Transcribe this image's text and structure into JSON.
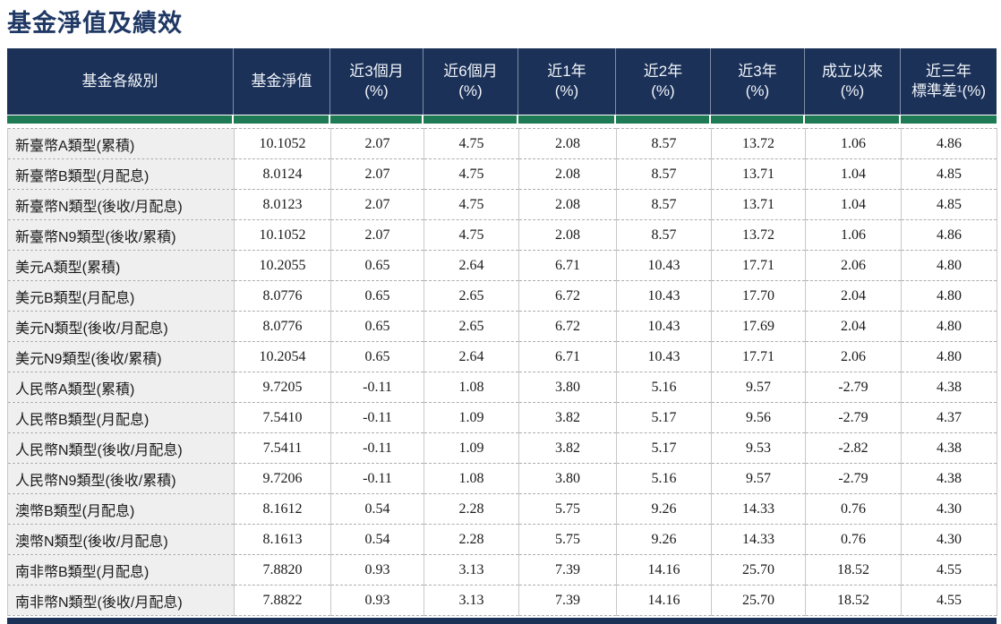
{
  "page_title": "基金淨值及績效",
  "table": {
    "columns": [
      {
        "line1": "基金各級別",
        "line2": ""
      },
      {
        "line1": "基金淨值",
        "line2": ""
      },
      {
        "line1": "近3個月",
        "line2": "(%)"
      },
      {
        "line1": "近6個月",
        "line2": "(%)"
      },
      {
        "line1": "近1年",
        "line2": "(%)"
      },
      {
        "line1": "近2年",
        "line2": "(%)"
      },
      {
        "line1": "近3年",
        "line2": "(%)"
      },
      {
        "line1": "成立以來",
        "line2": "(%)"
      },
      {
        "line1": "近三年",
        "line2": "標準差¹(%)"
      }
    ],
    "rows": [
      {
        "label": "新臺幣A類型(累積)",
        "values": [
          "10.1052",
          "2.07",
          "4.75",
          "2.08",
          "8.57",
          "13.72",
          "1.06",
          "4.86"
        ]
      },
      {
        "label": "新臺幣B類型(月配息)",
        "values": [
          "8.0124",
          "2.07",
          "4.75",
          "2.08",
          "8.57",
          "13.71",
          "1.04",
          "4.85"
        ]
      },
      {
        "label": "新臺幣N類型(後收/月配息)",
        "values": [
          "8.0123",
          "2.07",
          "4.75",
          "2.08",
          "8.57",
          "13.71",
          "1.04",
          "4.85"
        ]
      },
      {
        "label": "新臺幣N9類型(後收/累積)",
        "values": [
          "10.1052",
          "2.07",
          "4.75",
          "2.08",
          "8.57",
          "13.72",
          "1.06",
          "4.86"
        ]
      },
      {
        "label": "美元A類型(累積)",
        "values": [
          "10.2055",
          "0.65",
          "2.64",
          "6.71",
          "10.43",
          "17.71",
          "2.06",
          "4.80"
        ]
      },
      {
        "label": "美元B類型(月配息)",
        "values": [
          "8.0776",
          "0.65",
          "2.65",
          "6.72",
          "10.43",
          "17.70",
          "2.04",
          "4.80"
        ]
      },
      {
        "label": "美元N類型(後收/月配息)",
        "values": [
          "8.0776",
          "0.65",
          "2.65",
          "6.72",
          "10.43",
          "17.69",
          "2.04",
          "4.80"
        ]
      },
      {
        "label": "美元N9類型(後收/累積)",
        "values": [
          "10.2054",
          "0.65",
          "2.64",
          "6.71",
          "10.43",
          "17.71",
          "2.06",
          "4.80"
        ]
      },
      {
        "label": "人民幣A類型(累積)",
        "values": [
          "9.7205",
          "-0.11",
          "1.08",
          "3.80",
          "5.16",
          "9.57",
          "-2.79",
          "4.38"
        ]
      },
      {
        "label": "人民幣B類型(月配息)",
        "values": [
          "7.5410",
          "-0.11",
          "1.09",
          "3.82",
          "5.17",
          "9.56",
          "-2.79",
          "4.37"
        ]
      },
      {
        "label": "人民幣N類型(後收/月配息)",
        "values": [
          "7.5411",
          "-0.11",
          "1.09",
          "3.82",
          "5.17",
          "9.53",
          "-2.82",
          "4.38"
        ]
      },
      {
        "label": "人民幣N9類型(後收/累積)",
        "values": [
          "9.7206",
          "-0.11",
          "1.08",
          "3.80",
          "5.16",
          "9.57",
          "-2.79",
          "4.38"
        ]
      },
      {
        "label": "澳幣B類型(月配息)",
        "values": [
          "8.1612",
          "0.54",
          "2.28",
          "5.75",
          "9.26",
          "14.33",
          "0.76",
          "4.30"
        ]
      },
      {
        "label": "澳幣N類型(後收/月配息)",
        "values": [
          "8.1613",
          "0.54",
          "2.28",
          "5.75",
          "9.26",
          "14.33",
          "0.76",
          "4.30"
        ]
      },
      {
        "label": "南非幣B類型(月配息)",
        "values": [
          "7.8820",
          "0.93",
          "3.13",
          "7.39",
          "14.16",
          "25.70",
          "18.52",
          "4.55"
        ]
      },
      {
        "label": "南非幣N類型(後收/月配息)",
        "values": [
          "7.8822",
          "0.93",
          "3.13",
          "7.39",
          "14.16",
          "25.70",
          "18.52",
          "4.55"
        ]
      }
    ]
  },
  "colors": {
    "header_navy": "#1B3158",
    "title_navy": "#1F3864",
    "divider_green": "#1E7A55",
    "label_cell_gray": "#EFEFEF"
  }
}
